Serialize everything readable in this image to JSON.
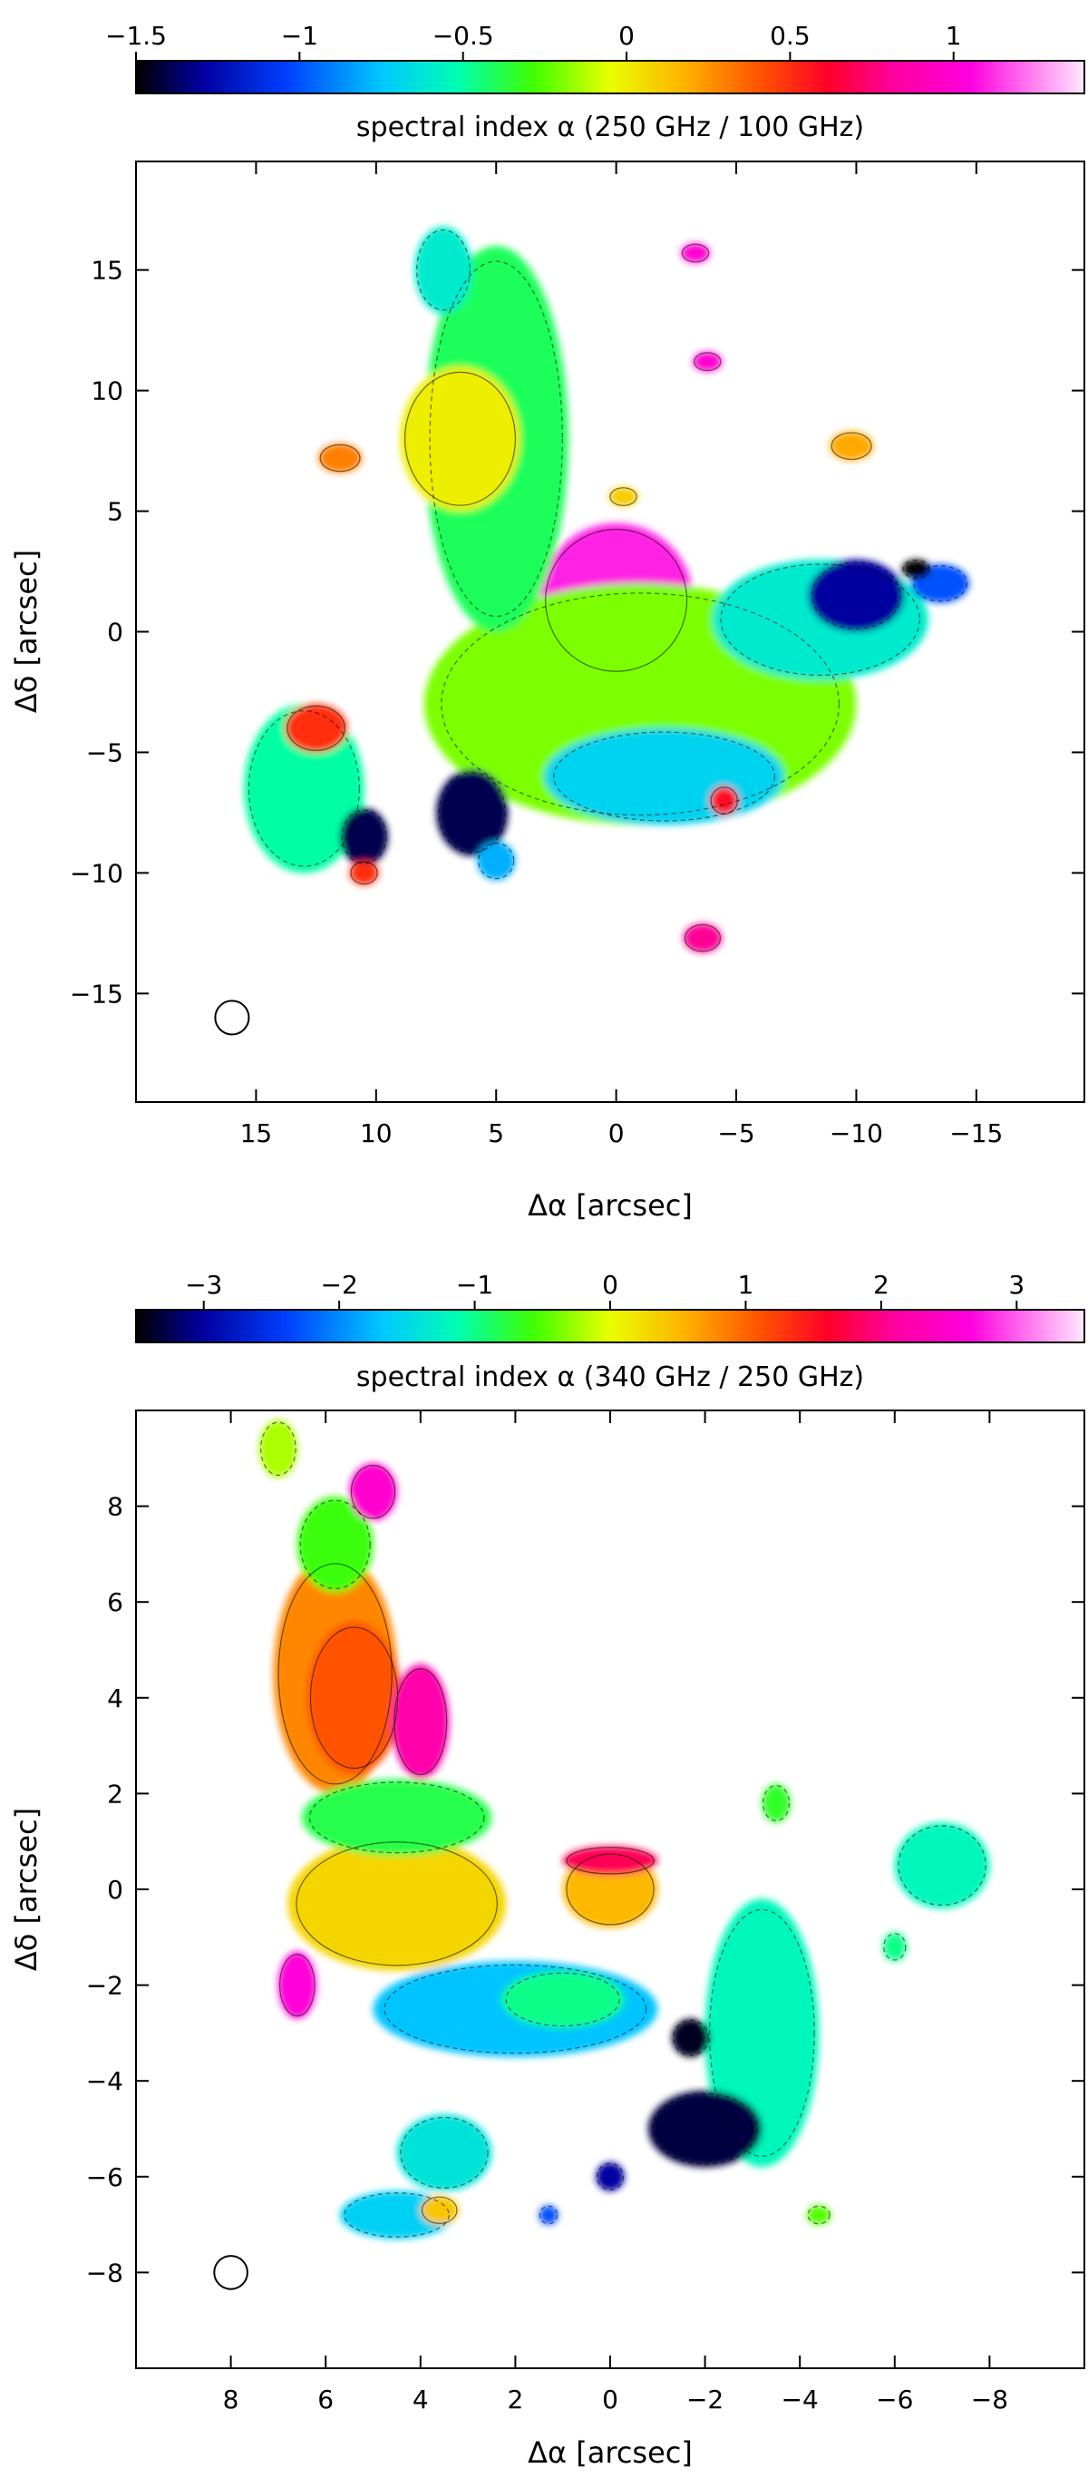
{
  "chart_data": [
    {
      "type": "heatmap",
      "colorbar": {
        "title": "spectral index α (250 GHz / 100 GHz)",
        "range": [
          -1.5,
          1.4
        ],
        "ticks": [
          -1.5,
          -1,
          -0.5,
          0,
          0.5,
          1
        ],
        "tick_labels": [
          "−1.5",
          "−1",
          "−0.5",
          "0",
          "0.5",
          "1"
        ]
      },
      "xlabel": "Δα [arcsec]",
      "ylabel": "Δδ [arcsec]",
      "xlim": [
        20,
        -19.5
      ],
      "ylim": [
        -19.5,
        19.5
      ],
      "x_ticks": [
        15,
        10,
        5,
        0,
        -5,
        -10,
        -15
      ],
      "x_tick_labels": [
        "15",
        "10",
        "5",
        "0",
        "−5",
        "−10",
        "−15"
      ],
      "y_ticks": [
        15,
        10,
        5,
        0,
        -5,
        -10,
        -15
      ],
      "y_tick_labels": [
        "15",
        "10",
        "5",
        "0",
        "−5",
        "−10",
        "−15"
      ],
      "beam": {
        "x": 16,
        "y": -16,
        "diameter_arcsec": 1.4
      },
      "regions": [
        {
          "name": "core",
          "x": 0,
          "y": 1.3,
          "r": 3.2,
          "value": 1.1
        },
        {
          "name": "central-plateau",
          "x": -1,
          "y": -3,
          "rx": 9,
          "ry": 5,
          "value": -0.2
        },
        {
          "name": "north-ridge",
          "x": 5,
          "y": 8,
          "rx": 3,
          "ry": 8,
          "value": -0.4
        },
        {
          "name": "north-ridge-peak",
          "x": 6.5,
          "y": 8,
          "rx": 2.5,
          "ry": 3,
          "value": 0.0
        },
        {
          "name": "northern-tip",
          "x": 7.2,
          "y": 15,
          "rx": 1.2,
          "ry": 1.8,
          "value": -0.6
        },
        {
          "name": "west-arm",
          "x": -8.5,
          "y": 0.5,
          "rx": 4.5,
          "ry": 2.5,
          "value": -0.6
        },
        {
          "name": "west-arm-edge",
          "x": -10,
          "y": 1.5,
          "rx": 2,
          "ry": 1.5,
          "value": -1.3
        },
        {
          "name": "south-lobe",
          "x": -2,
          "y": -6,
          "rx": 5,
          "ry": 2,
          "value": -0.7
        },
        {
          "name": "south-edge-dark",
          "x": 6,
          "y": -7.5,
          "rx": 1.5,
          "ry": 1.8,
          "value": -1.4
        },
        {
          "name": "south-green-blob",
          "x": 5,
          "y": -9.5,
          "rx": 0.8,
          "ry": 0.8,
          "value": -0.8
        },
        {
          "name": "southeast-clump",
          "x": 13,
          "y": -6.5,
          "rx": 2.5,
          "ry": 3.5,
          "value": -0.5
        },
        {
          "name": "southeast-clump-hot",
          "x": 12.5,
          "y": -4,
          "rx": 1.3,
          "ry": 1,
          "value": 0.5
        },
        {
          "name": "southeast-clump-dark",
          "x": 10.5,
          "y": -8.5,
          "rx": 1,
          "ry": 1.2,
          "value": -1.4
        },
        {
          "name": "southeast-clump-tip",
          "x": 10.5,
          "y": -10,
          "rx": 0.6,
          "ry": 0.5,
          "value": 0.5
        },
        {
          "name": "west-knot",
          "x": -13.5,
          "y": 2,
          "rx": 1.2,
          "ry": 0.8,
          "value": -1.0
        },
        {
          "name": "west-knot-dark",
          "x": -12.5,
          "y": 2.6,
          "rx": 0.6,
          "ry": 0.4,
          "value": -1.5
        },
        {
          "name": "northwest-knot",
          "x": -9.8,
          "y": 7.7,
          "rx": 0.9,
          "ry": 0.6,
          "value": 0.2
        },
        {
          "name": "north-isolated-1",
          "x": -3.3,
          "y": 15.7,
          "rx": 0.6,
          "ry": 0.4,
          "value": 1.0
        },
        {
          "name": "north-isolated-2",
          "x": -3.8,
          "y": 11.2,
          "rx": 0.6,
          "ry": 0.4,
          "value": 1.0
        },
        {
          "name": "center-knot",
          "x": -0.3,
          "y": 5.6,
          "rx": 0.6,
          "ry": 0.4,
          "value": 0.1
        },
        {
          "name": "east-knot",
          "x": 11.5,
          "y": 7.2,
          "rx": 0.9,
          "ry": 0.6,
          "value": 0.3
        },
        {
          "name": "south-isolated",
          "x": -3.6,
          "y": -12.7,
          "rx": 0.8,
          "ry": 0.6,
          "value": 0.8
        },
        {
          "name": "south-edge-hot",
          "x": -4.5,
          "y": -7,
          "rx": 0.6,
          "ry": 0.6,
          "value": 0.6
        }
      ]
    },
    {
      "type": "heatmap",
      "colorbar": {
        "title": "spectral index α (340 GHz / 250 GHz)",
        "range": [
          -3.5,
          3.5
        ],
        "ticks": [
          -3,
          -2,
          -1,
          0,
          1,
          2,
          3
        ],
        "tick_labels": [
          "−3",
          "−2",
          "−1",
          "0",
          "1",
          "2",
          "3"
        ]
      },
      "xlabel": "Δα [arcsec]",
      "ylabel": "Δδ [arcsec]",
      "xlim": [
        10,
        -10
      ],
      "ylim": [
        -10,
        10
      ],
      "x_ticks": [
        8,
        6,
        4,
        2,
        0,
        -2,
        -4,
        -6,
        -8
      ],
      "x_tick_labels": [
        "8",
        "6",
        "4",
        "2",
        "0",
        "−2",
        "−4",
        "−6",
        "−8"
      ],
      "y_ticks": [
        8,
        6,
        4,
        2,
        0,
        -2,
        -4,
        -6,
        -8
      ],
      "y_tick_labels": [
        "8",
        "6",
        "4",
        "2",
        "0",
        "−2",
        "−4",
        "−6",
        "−8"
      ],
      "beam": {
        "x": 8,
        "y": -8,
        "diameter_arcsec": 0.7
      },
      "regions": [
        {
          "name": "northeast-arc",
          "x": 5.8,
          "y": 4.5,
          "rx": 1.3,
          "ry": 2.5,
          "value": 0.8
        },
        {
          "name": "northeast-arc-core",
          "x": 5.4,
          "y": 4.0,
          "rx": 1.0,
          "ry": 1.6,
          "value": 1.1
        },
        {
          "name": "northeast-arc-top",
          "x": 5.8,
          "y": 7.2,
          "rx": 0.8,
          "ry": 1.0,
          "value": -0.6
        },
        {
          "name": "northeast-arc-edge",
          "x": 4.0,
          "y": 3.5,
          "rx": 0.6,
          "ry": 1.2,
          "value": 2.2
        },
        {
          "name": "north-knot",
          "x": 7.0,
          "y": 9.2,
          "rx": 0.4,
          "ry": 0.6,
          "value": -0.2
        },
        {
          "name": "north-hot-knot",
          "x": 5.0,
          "y": 8.3,
          "rx": 0.5,
          "ry": 0.6,
          "value": 2.5
        },
        {
          "name": "east-plateau",
          "x": 4.5,
          "y": -0.3,
          "rx": 2.3,
          "ry": 1.4,
          "value": 0.3
        },
        {
          "name": "east-plateau-north",
          "x": 4.5,
          "y": 1.5,
          "rx": 2.0,
          "ry": 0.8,
          "value": -0.8
        },
        {
          "name": "central-blob",
          "x": 0.0,
          "y": 0.0,
          "rx": 1.0,
          "ry": 0.8,
          "value": 0.5
        },
        {
          "name": "central-blob-rim",
          "x": 0.0,
          "y": 0.6,
          "rx": 1.0,
          "ry": 0.3,
          "value": 1.8
        },
        {
          "name": "south-arc",
          "x": 2.0,
          "y": -2.5,
          "rx": 3.0,
          "ry": 1.0,
          "value": -1.7
        },
        {
          "name": "south-arc-green",
          "x": 1.0,
          "y": -2.3,
          "rx": 1.3,
          "ry": 0.6,
          "value": -1.0
        },
        {
          "name": "southwest-arm",
          "x": -3.2,
          "y": -3.0,
          "rx": 1.2,
          "ry": 2.8,
          "value": -1.2
        },
        {
          "name": "southwest-arm-dark",
          "x": -2.0,
          "y": -5.0,
          "rx": 1.2,
          "ry": 0.8,
          "value": -3.3
        },
        {
          "name": "west-clump",
          "x": -7.0,
          "y": 0.5,
          "rx": 1.0,
          "ry": 0.9,
          "value": -1.2
        },
        {
          "name": "west-knot",
          "x": -3.5,
          "y": 1.8,
          "rx": 0.3,
          "ry": 0.4,
          "value": -0.7
        },
        {
          "name": "west-small-knot",
          "x": -6.0,
          "y": -1.2,
          "rx": 0.25,
          "ry": 0.3,
          "value": -1.0
        },
        {
          "name": "southeast-clump",
          "x": 3.5,
          "y": -5.5,
          "rx": 1.0,
          "ry": 0.8,
          "value": -1.4
        },
        {
          "name": "southeast-clump-2",
          "x": 4.5,
          "y": -6.8,
          "rx": 1.2,
          "ry": 0.5,
          "value": -1.6
        },
        {
          "name": "southeast-clump-hot",
          "x": 3.6,
          "y": -6.7,
          "rx": 0.4,
          "ry": 0.3,
          "value": 0.4
        },
        {
          "name": "east-hot-knot",
          "x": 6.6,
          "y": -2.0,
          "rx": 0.4,
          "ry": 0.7,
          "value": 2.6
        },
        {
          "name": "south-dark-dot-1",
          "x": 0.0,
          "y": -6.0,
          "rx": 0.3,
          "ry": 0.3,
          "value": -3.0
        },
        {
          "name": "south-dark-dot-2",
          "x": 1.3,
          "y": -6.8,
          "rx": 0.2,
          "ry": 0.2,
          "value": -2.3
        },
        {
          "name": "dark-hole-knot",
          "x": -1.7,
          "y": -3.1,
          "rx": 0.4,
          "ry": 0.4,
          "value": -3.4
        },
        {
          "name": "southwest-tiny",
          "x": -4.4,
          "y": -6.8,
          "rx": 0.25,
          "ry": 0.2,
          "value": -0.5
        }
      ]
    }
  ]
}
